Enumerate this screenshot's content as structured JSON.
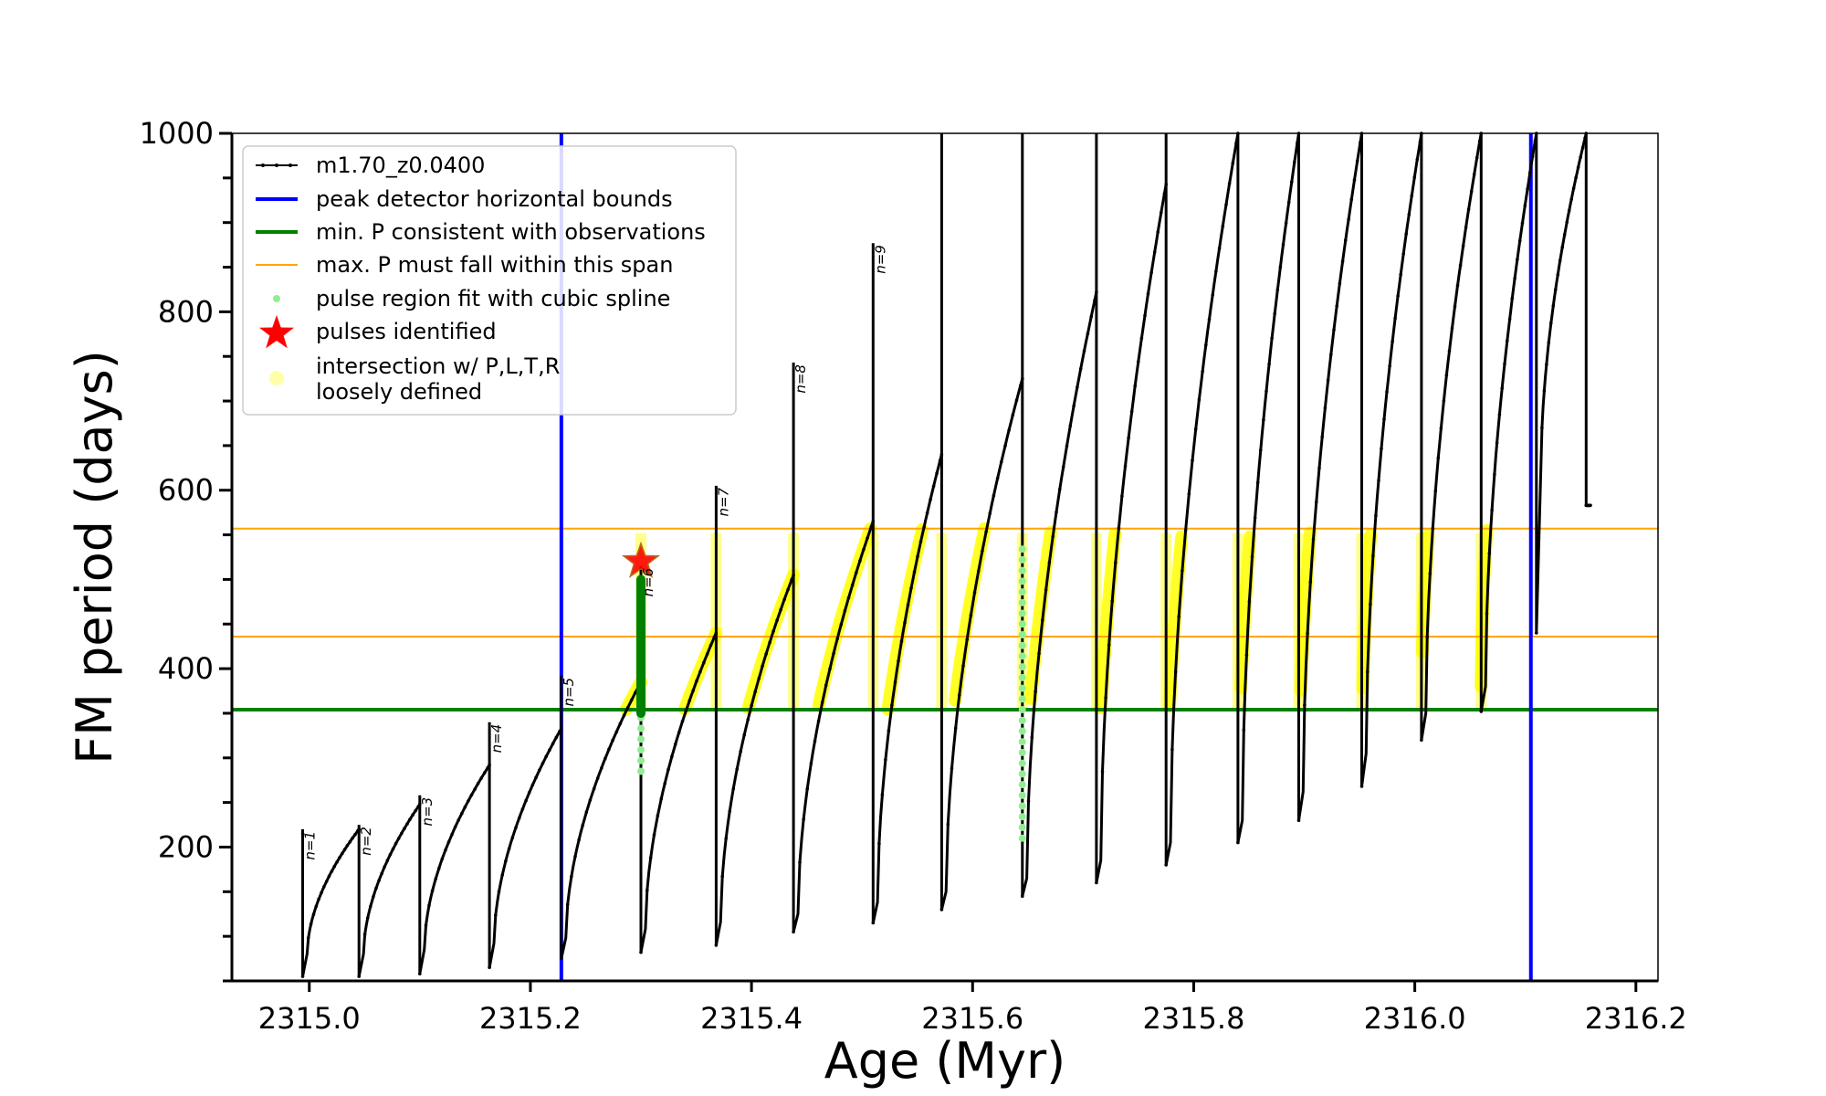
{
  "chart_data": {
    "type": "line",
    "title": "",
    "xlabel": "Age (Myr)",
    "ylabel": "FM period (days)",
    "xlim": [
      2314.93,
      2316.22
    ],
    "ylim": [
      50,
      1000
    ],
    "x_ticks": [
      2315.0,
      2315.2,
      2315.4,
      2315.6,
      2315.8,
      2316.0,
      2316.2
    ],
    "x_tick_labels": [
      "2315.0",
      "2315.2",
      "2315.4",
      "2315.6",
      "2315.8",
      "2316.0",
      "2316.2"
    ],
    "y_ticks": [
      200,
      400,
      600,
      800,
      1000
    ],
    "y_tick_labels": [
      "200",
      "400",
      "600",
      "800",
      "1000"
    ],
    "y_minor_ticks": [
      50,
      100,
      150,
      250,
      300,
      350,
      450,
      500,
      550,
      650,
      700,
      750,
      850,
      900,
      950
    ],
    "grid": false,
    "legend_position": "upper-left",
    "legend": [
      {
        "label": "m1.70_z0.0400",
        "style": "line-dots",
        "color": "#000000"
      },
      {
        "label": "peak detector horizontal bounds",
        "style": "line",
        "color": "#0000ff"
      },
      {
        "label": "min. P consistent with observations",
        "style": "line",
        "color": "#008000"
      },
      {
        "label": "max. P must fall within this span",
        "style": "thin-line",
        "color": "#ffa500"
      },
      {
        "label": "pulse region fit with cubic spline",
        "style": "dot",
        "color": "#90ee90"
      },
      {
        "label": "pulses identified",
        "style": "star",
        "color": "#ff0000"
      },
      {
        "label": "intersection w/ P,L,T,R\nloosely defined",
        "style": "soft-dot",
        "color": "#ffff00"
      }
    ],
    "series": [
      {
        "name": "m1.70_z0.0400",
        "color": "#000000",
        "pulses": [
          {
            "x": 2314.994,
            "y_peak": 215,
            "y_spike": 220,
            "y_drop": 55,
            "y_min": 80,
            "end": 2315.045,
            "end_y": 220,
            "label": "n=1"
          },
          {
            "x": 2315.045,
            "y_peak": 220,
            "y_spike": 225,
            "y_drop": 55,
            "y_min": 80,
            "end": 2315.1,
            "end_y": 248,
            "label": "n=2"
          },
          {
            "x": 2315.1,
            "y_peak": 248,
            "y_spike": 258,
            "y_drop": 58,
            "y_min": 85,
            "end": 2315.163,
            "end_y": 292,
            "label": "n=3"
          },
          {
            "x": 2315.163,
            "y_peak": 292,
            "y_spike": 340,
            "y_drop": 65,
            "y_min": 92,
            "end": 2315.228,
            "end_y": 333,
            "label": "n=4"
          },
          {
            "x": 2315.228,
            "y_peak": 333,
            "y_spike": 392,
            "y_drop": 75,
            "y_min": 98,
            "end": 2315.3,
            "end_y": 385,
            "label": "n=5"
          },
          {
            "x": 2315.3,
            "y_peak": 385,
            "y_spike": 515,
            "y_drop": 82,
            "y_min": 108,
            "end": 2315.368,
            "end_y": 440,
            "label": "n=6"
          },
          {
            "x": 2315.368,
            "y_peak": 440,
            "y_spike": 605,
            "y_drop": 90,
            "y_min": 116,
            "end": 2315.438,
            "end_y": 505,
            "label": "n=7"
          },
          {
            "x": 2315.438,
            "y_peak": 505,
            "y_spike": 743,
            "y_drop": 105,
            "y_min": 125,
            "end": 2315.51,
            "end_y": 565,
            "label": "n=8"
          },
          {
            "x": 2315.51,
            "y_peak": 565,
            "y_spike": 877,
            "y_drop": 115,
            "y_min": 138,
            "end": 2315.572,
            "end_y": 640,
            "label": "n=9"
          },
          {
            "x": 2315.572,
            "y_peak": 640,
            "y_spike": 1000,
            "y_drop": 130,
            "y_min": 150,
            "end": 2315.645,
            "end_y": 725,
            "label": ""
          },
          {
            "x": 2315.645,
            "y_peak": 725,
            "y_spike": 1000,
            "y_drop": 145,
            "y_min": 165,
            "end": 2315.712,
            "end_y": 822,
            "label": ""
          },
          {
            "x": 2315.712,
            "y_peak": 822,
            "y_spike": 1000,
            "y_drop": 160,
            "y_min": 185,
            "end": 2315.775,
            "end_y": 943,
            "label": ""
          },
          {
            "x": 2315.775,
            "y_peak": 943,
            "y_spike": 1000,
            "y_drop": 180,
            "y_min": 205,
            "end": 2315.84,
            "end_y": 1000,
            "label": ""
          },
          {
            "x": 2315.84,
            "y_peak": 1000,
            "y_spike": 1000,
            "y_drop": 205,
            "y_min": 230,
            "end": 2315.895,
            "end_y": 1000,
            "label": ""
          },
          {
            "x": 2315.895,
            "y_peak": 1000,
            "y_spike": 1000,
            "y_drop": 230,
            "y_min": 262,
            "end": 2315.952,
            "end_y": 1000,
            "label": ""
          },
          {
            "x": 2315.952,
            "y_peak": 1000,
            "y_spike": 1000,
            "y_drop": 268,
            "y_min": 305,
            "end": 2316.006,
            "end_y": 1000,
            "label": ""
          },
          {
            "x": 2316.006,
            "y_peak": 1000,
            "y_spike": 1000,
            "y_drop": 320,
            "y_min": 350,
            "end": 2316.06,
            "end_y": 1000,
            "label": ""
          },
          {
            "x": 2316.06,
            "y_peak": 1000,
            "y_spike": 1000,
            "y_drop": 352,
            "y_min": 380,
            "end": 2316.11,
            "end_y": 1000,
            "label": ""
          },
          {
            "x": 2316.11,
            "y_peak": 1000,
            "y_spike": 1000,
            "y_drop": 440,
            "y_min": 620,
            "end": 2316.155,
            "end_y": 1000,
            "label": ""
          },
          {
            "x": 2316.155,
            "y_peak": 1000,
            "y_spike": 1000,
            "y_drop": 583,
            "y_min": 583,
            "end": 2316.155,
            "end_y": 583,
            "label": ""
          }
        ]
      },
      {
        "name": "peak detector horizontal bounds",
        "color": "#0000ff",
        "x_values": [
          2315.228,
          2316.105
        ]
      },
      {
        "name": "min. P consistent with observations",
        "color": "#008000",
        "y_value": 354
      },
      {
        "name": "max. P must fall within this span",
        "color": "#ffa500",
        "y_values": [
          436,
          557
        ]
      },
      {
        "name": "pulse region fit with cubic spline",
        "color": "#90ee90",
        "segments": [
          {
            "x": 2315.3,
            "y_from": 285,
            "y_to": 500
          },
          {
            "x": 2315.645,
            "y_from": 210,
            "y_to": 540
          }
        ],
        "dark_segment": {
          "x": 2315.3,
          "y_from": 350,
          "y_to": 500,
          "color": "#008000"
        }
      },
      {
        "name": "pulses identified",
        "color": "#ff0000",
        "points": [
          {
            "x": 2315.3,
            "y": 520
          }
        ]
      },
      {
        "name": "intersection w/ P,L,T,R loosely defined",
        "color": "#ffff00",
        "y_band": [
          354,
          557
        ]
      }
    ]
  }
}
